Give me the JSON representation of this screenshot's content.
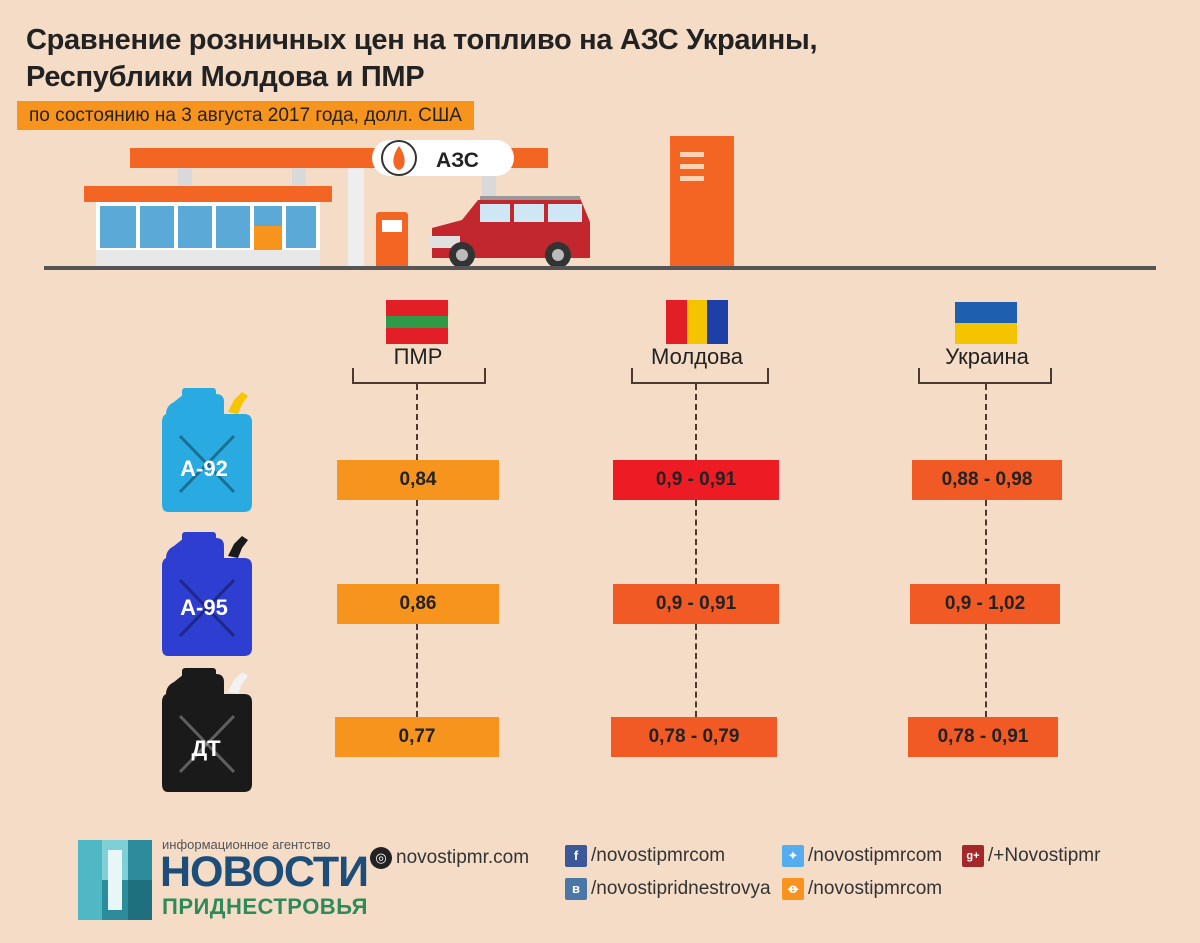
{
  "header": {
    "title_line1": "Сравнение розничных цен на топливо на АЗС Украины,",
    "title_line2": "Республики Молдова и ПМР",
    "subtitle": "по состоянию на 3 августа 2017 года, долл. США"
  },
  "scene": {
    "station_sign": "АЗС"
  },
  "countries": [
    {
      "name": "ПМР",
      "flag": [
        "#e21f26",
        "#2e9a48",
        "#e21f26"
      ]
    },
    {
      "name": "Молдова",
      "flag": [
        "#e21f26",
        "#f5c400",
        "#1e3fa8"
      ]
    },
    {
      "name": "Украина",
      "flag": [
        "#1e5fb0",
        "#f5c400"
      ]
    }
  ],
  "fuels": [
    {
      "label": "А-92",
      "canister_color": "#29abe2",
      "prices": [
        "0,84",
        "0,9 - 0,91",
        "0,88 - 0,98"
      ]
    },
    {
      "label": "А-95",
      "canister_color": "#2d3ed0",
      "prices": [
        "0,86",
        "0,9 - 0,91",
        "0,9 - 1,02"
      ]
    },
    {
      "label": "ДТ",
      "canister_color": "#1a1a1a",
      "prices": [
        "0,77",
        "0,78 - 0,79",
        "0,78 - 0,91"
      ]
    }
  ],
  "footer": {
    "agency_small": "информационное агентство",
    "agency_name": "НОВОСТИ",
    "agency_sub": "ПРИДНЕСТРОВЬЯ",
    "site": "novostipmr.com",
    "facebook": "/novostipmrcom",
    "vk": "/novostipridnestrovya",
    "twitter": "/novostipmrcom",
    "odnoklassniki": "/novostipmrcom",
    "googleplus": "/+Novostipmr",
    "icons": {
      "site": "globe-icon",
      "facebook": "f",
      "vk": "в",
      "twitter": "bird-icon",
      "odnoklassniki": "ok-icon",
      "googleplus": "g+"
    }
  }
}
